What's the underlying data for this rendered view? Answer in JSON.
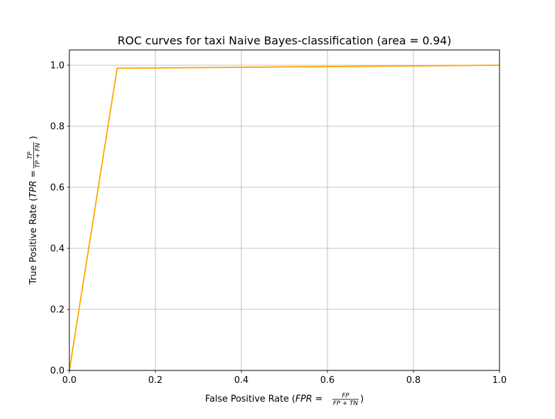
{
  "chart_data": {
    "type": "line",
    "title": "ROC curves for taxi Naive Bayes-classification (area = 0.94)",
    "xlabel": {
      "prefix": "False Positive Rate (",
      "var": "FPR",
      "eq": " = ",
      "numerator": "FP",
      "denominator": "FP + TN",
      "suffix": ")"
    },
    "ylabel": {
      "prefix": "True Positive Rate (",
      "var": "TPR",
      "eq": " = ",
      "numerator": "TP",
      "denominator": "TP + FN",
      "suffix": ")"
    },
    "xlim": [
      0.0,
      1.0
    ],
    "ylim": [
      0.0,
      1.05
    ],
    "xticks": [
      "0.0",
      "0.2",
      "0.4",
      "0.6",
      "0.8",
      "1.0"
    ],
    "yticks": [
      "0.0",
      "0.2",
      "0.4",
      "0.6",
      "0.8",
      "1.0"
    ],
    "grid": true,
    "series": [
      {
        "color": "#ffa500",
        "x": [
          0.0,
          0.111,
          1.0
        ],
        "y": [
          0.0,
          0.99,
          1.0
        ]
      }
    ]
  }
}
